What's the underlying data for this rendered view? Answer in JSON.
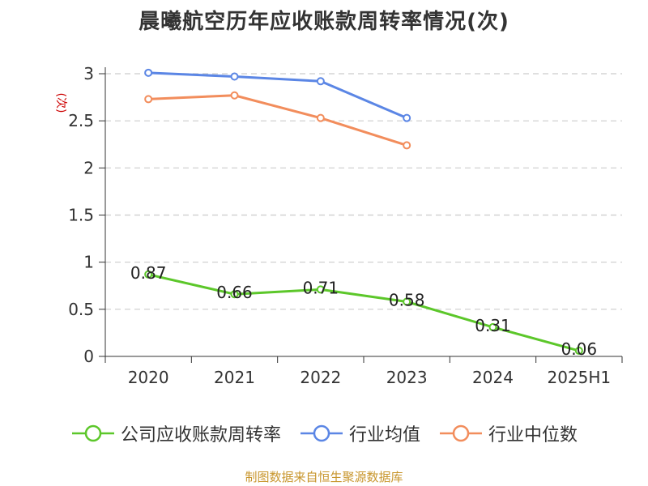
{
  "title": "晨曦航空历年应收账款周转率情况(次)",
  "source": "制图数据来自恒生聚源数据库",
  "chart_data": {
    "type": "line",
    "title": "晨曦航空历年应收账款周转率情况(次)",
    "ylabel": "(次)",
    "xlabel": "",
    "categories": [
      "2020",
      "2021",
      "2022",
      "2023",
      "2024",
      "2025H1"
    ],
    "ylim": [
      0,
      3
    ],
    "yticks": [
      0,
      0.5,
      1,
      1.5,
      2,
      2.5,
      3
    ],
    "ytick_labels": [
      "0",
      "0.5",
      "1",
      "1.5",
      "2",
      "2.5",
      "3"
    ],
    "grid": true,
    "legend_position": "bottom",
    "series": [
      {
        "name": "公司应收账款周转率",
        "color": "#5cc72a",
        "values": [
          0.87,
          0.66,
          0.71,
          0.58,
          0.31,
          0.06
        ],
        "labels": [
          "0.87",
          "0.66",
          "0.71",
          "0.58",
          "0.31",
          "0.06"
        ],
        "show_labels": true
      },
      {
        "name": "行业均值",
        "color": "#5b86e5",
        "values": [
          3.01,
          2.97,
          2.92,
          2.53,
          null,
          null
        ],
        "show_labels": false
      },
      {
        "name": "行业中位数",
        "color": "#f28d5c",
        "values": [
          2.73,
          2.77,
          2.53,
          2.24,
          null,
          null
        ],
        "show_labels": false
      }
    ]
  },
  "colors": {
    "ylabel": "#cc0000",
    "grid": "#cccccc",
    "axis": "#333333"
  }
}
